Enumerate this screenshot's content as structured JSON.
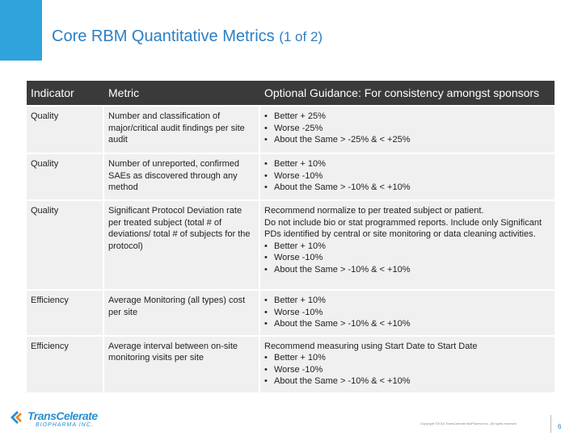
{
  "slide": {
    "title_main": "Core RBM Quantitative Metrics",
    "title_sub": "(1 of 2)"
  },
  "table": {
    "headers": [
      "Indicator",
      "Metric",
      "Optional Guidance:  For consistency amongst sponsors"
    ],
    "rows": [
      {
        "indicator": "Quality",
        "metric": "Number and classification of major/critical audit findings per site audit",
        "guidance_text": [],
        "bullets": [
          "Better + 25%",
          "Worse -25%",
          "About the Same  > -25% & < +25%"
        ]
      },
      {
        "indicator": "Quality",
        "metric": "Number of unreported, confirmed SAEs as discovered through any method",
        "guidance_text": [],
        "bullets": [
          "Better + 10%",
          "Worse -10%",
          "About the Same  > -10% & < +10%"
        ]
      },
      {
        "indicator": "Quality",
        "metric": "Significant Protocol Deviation rate per treated subject (total # of deviations/ total # of subjects for the protocol)",
        "guidance_text": [
          "Recommend normalize to per treated subject or patient.",
          "Do not include bio or stat programmed reports.  Include only Significant PDs identified by central or site monitoring or data cleaning activities."
        ],
        "bullets": [
          "Better + 10%",
          "Worse -10%",
          "About the Same  > -10% & < +10%"
        ]
      },
      {
        "indicator": "Efficiency",
        "metric": "Average Monitoring (all types) cost per site",
        "guidance_text": [],
        "bullets": [
          "Better + 10%",
          "Worse -10%",
          "About the Same  > -10% & < +10%"
        ]
      },
      {
        "indicator": "Efficiency",
        "metric": "Average interval between on-site monitoring visits per site",
        "guidance_text": [
          "Recommend measuring using Start Date to Start Date"
        ],
        "bullets": [
          "Better + 10%",
          "Worse -10%",
          "About the Same  > -10% & < +10%"
        ]
      }
    ]
  },
  "footer": {
    "logo_name": "TransCelerate",
    "logo_sub": "BIOPHARMA INC.",
    "copyright": "Copyright ©2016 TransCelerate BioPharma Inc., All rights reserved.",
    "page_number": "6"
  },
  "colors": {
    "accent": "#2ea3dc",
    "title": "#2b7fc4",
    "header_bg": "#3a3a3a",
    "row_bg": "#f0f0f0"
  }
}
